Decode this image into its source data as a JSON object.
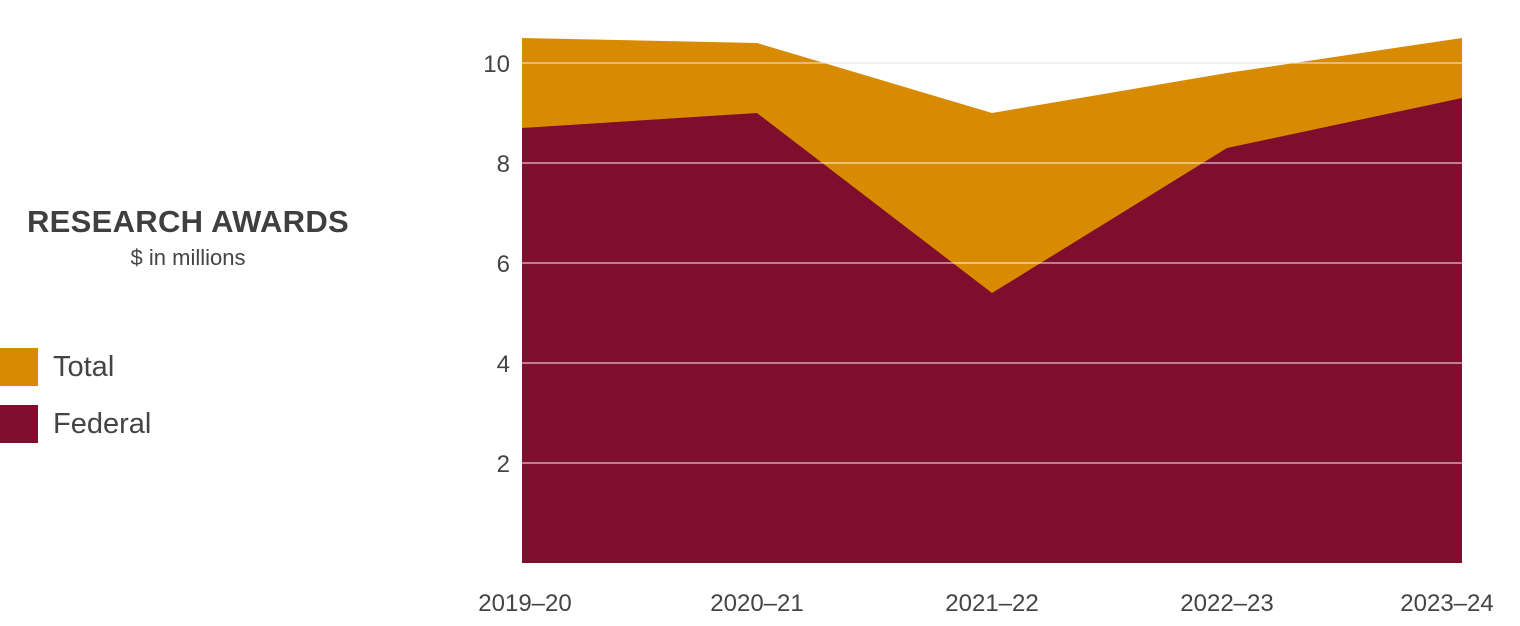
{
  "chart_data": {
    "type": "area",
    "title": "RESEARCH AWARDS",
    "subtitle": "$ in millions",
    "categories": [
      "2019–20",
      "2020–21",
      "2021–22",
      "2022–23",
      "2023–24"
    ],
    "series": [
      {
        "name": "Total",
        "color": "#D88B00",
        "values": [
          10.5,
          10.4,
          9.0,
          9.8,
          10.5
        ]
      },
      {
        "name": "Federal",
        "color": "#7F0D2D",
        "values": [
          8.7,
          9.0,
          5.4,
          8.3,
          9.3
        ]
      }
    ],
    "ylim": [
      0,
      10.5
    ],
    "yticks": [
      "2",
      "4",
      "6",
      "8",
      "10"
    ],
    "grid": true,
    "legend": "left"
  }
}
